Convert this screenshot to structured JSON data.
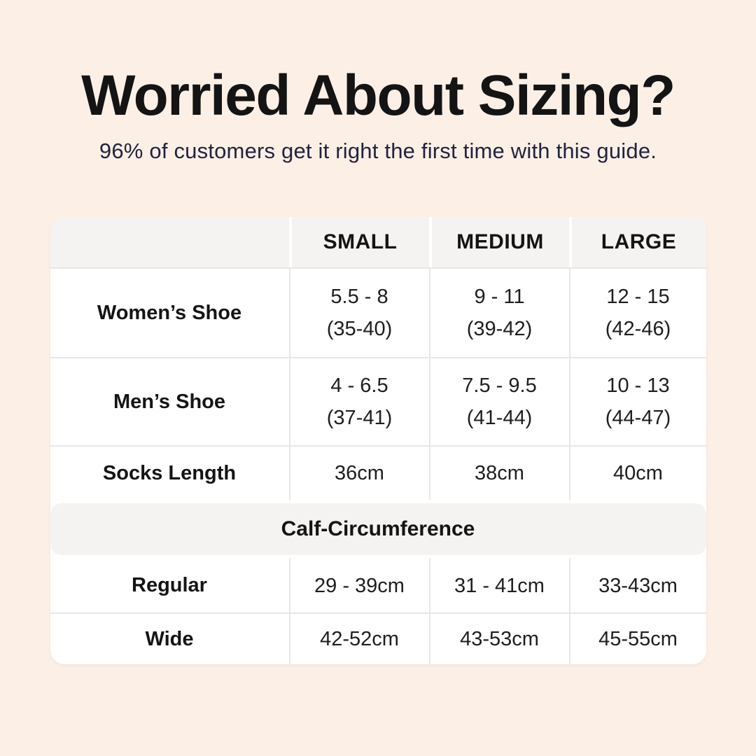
{
  "page": {
    "title": "Worried About Sizing?",
    "subtitle": "96% of customers get it right the first time with this guide."
  },
  "colors": {
    "background": "#fcf0e6",
    "card": "#ffffff",
    "header_bg": "#f5f3f1",
    "divider": "#e9e7e4",
    "title_text": "#141414",
    "subtitle_text": "#23233e",
    "body_text": "#1e1e1e"
  },
  "chart_data": {
    "type": "table",
    "title": "Worried About Sizing?",
    "subtitle": "96% of customers get it right the first time with this guide.",
    "columns": [
      "",
      "SMALL",
      "MEDIUM",
      "LARGE"
    ],
    "rows": [
      {
        "label": "Women’s Shoe",
        "values": [
          [
            "5.5 - 8",
            "(35-40)"
          ],
          [
            "9 - 11",
            "(39-42)"
          ],
          [
            "12 - 15",
            "(42-46)"
          ]
        ]
      },
      {
        "label": "Men’s Shoe",
        "values": [
          [
            "4 - 6.5",
            "(37-41)"
          ],
          [
            "7.5 - 9.5",
            "(41-44)"
          ],
          [
            "10 - 13",
            "(44-47)"
          ]
        ]
      },
      {
        "label": "Socks Length",
        "values": [
          [
            "36cm"
          ],
          [
            "38cm"
          ],
          [
            "40cm"
          ]
        ]
      }
    ],
    "section_header": "Calf-Circumference",
    "section_rows": [
      {
        "label": "Regular",
        "values": [
          [
            "29 - 39cm"
          ],
          [
            "31 - 41cm"
          ],
          [
            "33-43cm"
          ]
        ]
      },
      {
        "label": "Wide",
        "values": [
          [
            "42-52cm"
          ],
          [
            "43-53cm"
          ],
          [
            "45-55cm"
          ]
        ]
      }
    ],
    "layout_hints": {
      "grid": "off",
      "header_row_shaded": true,
      "section_band_shaded": true
    }
  }
}
